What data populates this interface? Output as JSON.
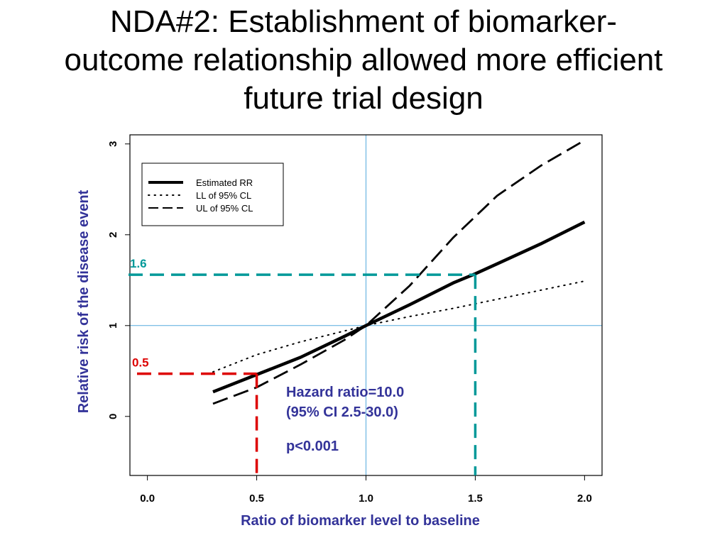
{
  "slide": {
    "title_lines": [
      "NDA#2: Establishment of biomarker-",
      "outcome relationship allowed more efficient",
      "future trial design"
    ]
  },
  "colors": {
    "axis_label": "#333399",
    "teal": "#009999",
    "red": "#dd0000",
    "reference_lines": "#55aadd"
  },
  "chart_data": {
    "type": "line",
    "xlabel": "Ratio of biomarker level to baseline",
    "ylabel": "Relative risk of the disease event",
    "xlim": [
      -0.08,
      2.08
    ],
    "ylim": [
      -0.65,
      3.1
    ],
    "x_ticks": [
      "0.0",
      "0.5",
      "1.0",
      "1.5",
      "2.0"
    ],
    "y_ticks": [
      "0",
      "1",
      "2",
      "3"
    ],
    "grid": false,
    "legend_position": "top-left",
    "series": [
      {
        "name": "Estimated RR",
        "style": "solid-thick",
        "x": [
          0.3,
          0.5,
          0.7,
          0.9,
          1.0,
          1.2,
          1.4,
          1.5,
          1.6,
          1.8,
          2.0
        ],
        "y": [
          0.27,
          0.46,
          0.65,
          0.88,
          1.0,
          1.23,
          1.47,
          1.57,
          1.68,
          1.9,
          2.14
        ]
      },
      {
        "name": "LL of 95% CL",
        "style": "dotted",
        "x": [
          0.3,
          0.5,
          0.7,
          0.9,
          1.0,
          1.2,
          1.4,
          1.6,
          1.8,
          2.0
        ],
        "y": [
          0.49,
          0.68,
          0.82,
          0.94,
          1.0,
          1.1,
          1.19,
          1.29,
          1.39,
          1.49
        ]
      },
      {
        "name": "UL of 95% CL",
        "style": "dashed",
        "x": [
          0.3,
          0.5,
          0.7,
          0.9,
          1.0,
          1.2,
          1.4,
          1.6,
          1.8,
          2.0
        ],
        "y": [
          0.14,
          0.32,
          0.57,
          0.84,
          1.0,
          1.44,
          1.97,
          2.43,
          2.76,
          3.04
        ]
      }
    ],
    "reference_lines": {
      "x": 1.0,
      "y": 1.0
    },
    "annotations": [
      {
        "label": "1.6",
        "x": 1.5,
        "y": 1.56,
        "color": "#009999"
      },
      {
        "label": "0.5",
        "x": 0.5,
        "y": 0.47,
        "color": "#dd0000"
      }
    ],
    "note_lines": [
      "Hazard ratio=10.0",
      "(95% CI 2.5-30.0)",
      "p<0.001"
    ]
  }
}
